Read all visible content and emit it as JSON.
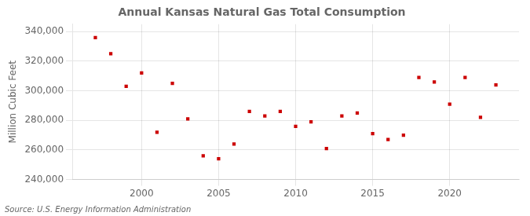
{
  "chart_data": {
    "type": "scatter",
    "title": "Annual Kansas Natural Gas Total Consumption",
    "ylabel": "Million Cubic Feet",
    "annotation": "Source: U.S. Energy Information Administration",
    "x": [
      1997,
      1998,
      1999,
      2000,
      2001,
      2002,
      2003,
      2004,
      2005,
      2006,
      2007,
      2008,
      2009,
      2010,
      2011,
      2012,
      2013,
      2014,
      2015,
      2016,
      2017,
      2018,
      2019,
      2020,
      2021,
      2022,
      2023
    ],
    "values": [
      336000,
      325000,
      303000,
      312000,
      272000,
      305000,
      281000,
      256000,
      254000,
      264000,
      286000,
      283000,
      286000,
      276000,
      279000,
      261000,
      283000,
      285000,
      271000,
      267000,
      270000,
      309000,
      306000,
      291000,
      309000,
      282000,
      304000
    ],
    "color": "#cc0000",
    "marker": "square",
    "xlim": [
      1995.5,
      2024.5
    ],
    "xticks": [
      2000,
      2005,
      2010,
      2015,
      2020
    ],
    "ylim": [
      240000,
      345000
    ],
    "yticks": [
      {
        "value": 240000,
        "label": "240,000"
      },
      {
        "value": 260000,
        "label": "260,000"
      },
      {
        "value": 280000,
        "label": "280,000"
      },
      {
        "value": 300000,
        "label": "300,000"
      },
      {
        "value": 320000,
        "label": "320,000"
      },
      {
        "value": 340000,
        "label": "340,000"
      }
    ],
    "grid": true
  }
}
